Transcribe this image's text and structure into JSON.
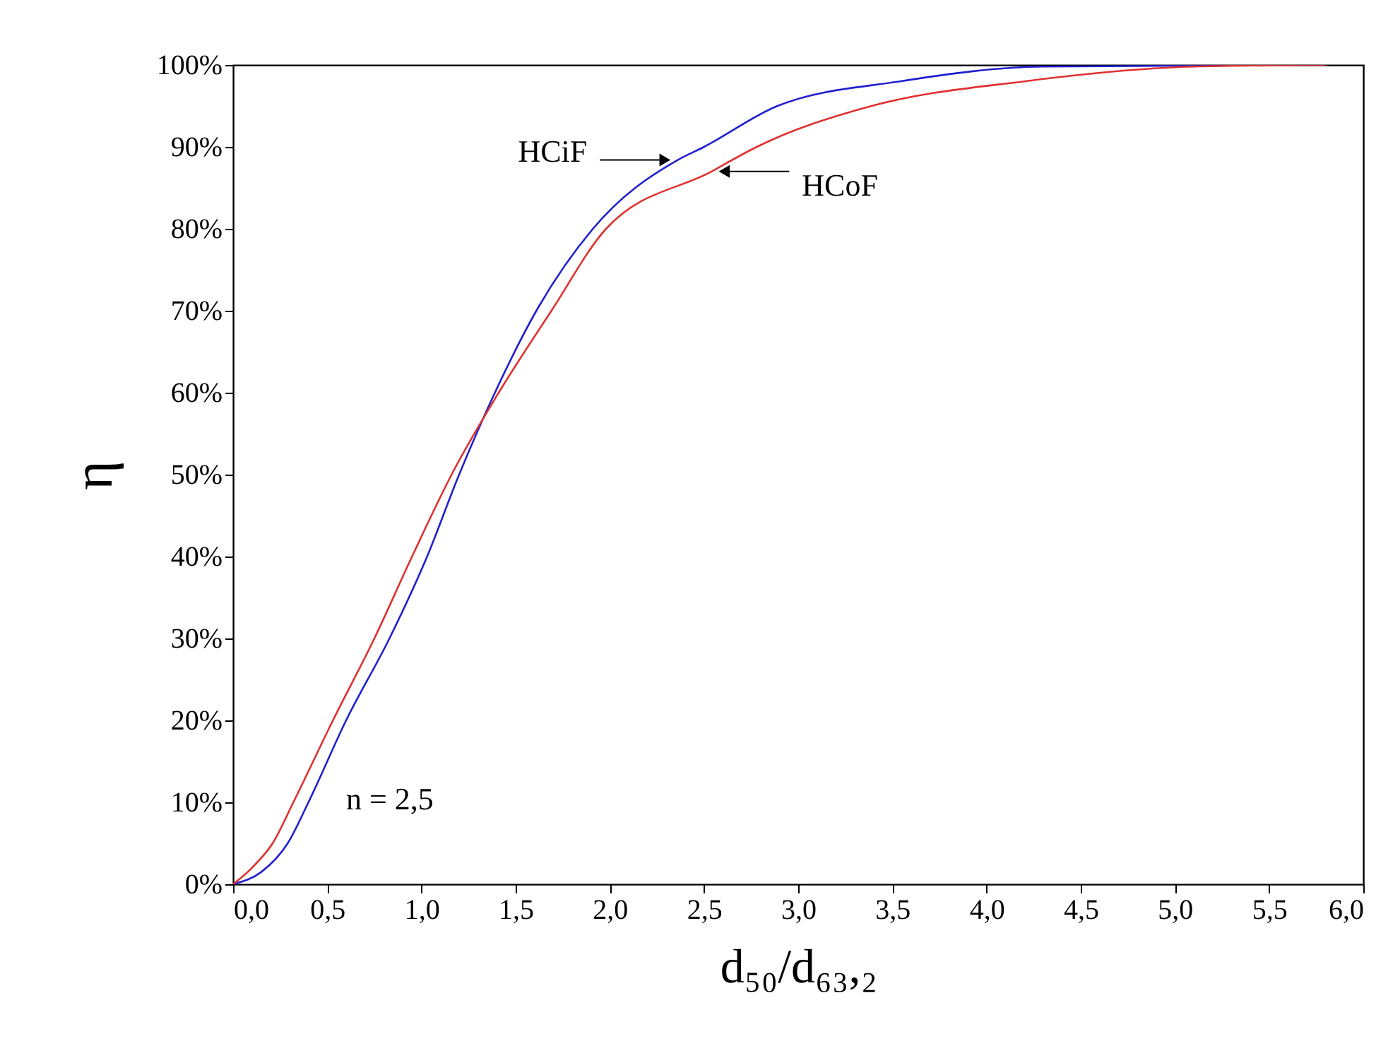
{
  "chart_data": {
    "type": "line",
    "xlabel": "d₅₀/d₆₃,₂",
    "ylabel": "η",
    "series": [
      {
        "name": "HCiF",
        "color": "#2020d0",
        "x": [
          0,
          0.15,
          0.29,
          0.4,
          0.6,
          0.83,
          1.03,
          1.2,
          1.39,
          1.61,
          1.91,
          2.36,
          2.5,
          2.89,
          3.54,
          4.3,
          5.8
        ],
        "values": [
          0,
          1.5,
          5,
          10,
          20,
          30,
          40,
          50,
          60,
          70,
          80,
          88.4,
          90,
          95,
          98,
          99.8,
          100
        ]
      },
      {
        "name": "HCoF",
        "color": "#e03030",
        "x": [
          0,
          0.1,
          0.21,
          0.32,
          0.53,
          0.75,
          0.95,
          1.16,
          1.41,
          1.69,
          1.98,
          2.54,
          2.78,
          3.39,
          4.2,
          5.1,
          5.8
        ],
        "values": [
          0,
          2,
          5,
          10,
          20,
          30,
          40,
          50,
          60,
          70,
          80,
          87,
          90,
          95,
          98,
          99.8,
          100
        ]
      }
    ],
    "annotations": [
      "n = 2,5"
    ],
    "xlim": [
      0,
      6
    ],
    "ylim": [
      0,
      100
    ],
    "xticks": [
      {
        "value": 0,
        "label": "0,0"
      },
      {
        "value": 0.5,
        "label": "0,5"
      },
      {
        "value": 1,
        "label": "1,0"
      },
      {
        "value": 1.5,
        "label": "1,5"
      },
      {
        "value": 2,
        "label": "2,0"
      },
      {
        "value": 2.5,
        "label": "2,5"
      },
      {
        "value": 3,
        "label": "3,0"
      },
      {
        "value": 3.5,
        "label": "3,5"
      },
      {
        "value": 4,
        "label": "4,0"
      },
      {
        "value": 4.5,
        "label": "4,5"
      },
      {
        "value": 5,
        "label": "5,0"
      },
      {
        "value": 5.5,
        "label": "5,5"
      },
      {
        "value": 6,
        "label": "6,0"
      }
    ],
    "yticks": [
      {
        "value": 0,
        "label": "0%"
      },
      {
        "value": 10,
        "label": "10%"
      },
      {
        "value": 20,
        "label": "20%"
      },
      {
        "value": 30,
        "label": "30%"
      },
      {
        "value": 40,
        "label": "40%"
      },
      {
        "value": 50,
        "label": "50%"
      },
      {
        "value": 60,
        "label": "60%"
      },
      {
        "value": 70,
        "label": "70%"
      },
      {
        "value": 80,
        "label": "80%"
      },
      {
        "value": 90,
        "label": "90%"
      },
      {
        "value": 100,
        "label": "100%"
      }
    ],
    "grid": false,
    "legend": false,
    "marker": "none",
    "line_style": "solid"
  }
}
